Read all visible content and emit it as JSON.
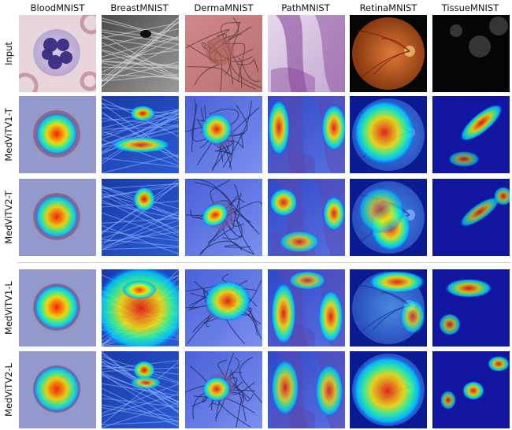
{
  "columns": [
    "BloodMNIST",
    "BreastMNIST",
    "DermaMNIST",
    "PathMNIST",
    "RetinaMNIST",
    "TissueMNIST"
  ],
  "rows": [
    "Input",
    "MedViTV1-T",
    "MedViTV2-T",
    "MedViTV1-L",
    "MedViTV2-L"
  ]
}
